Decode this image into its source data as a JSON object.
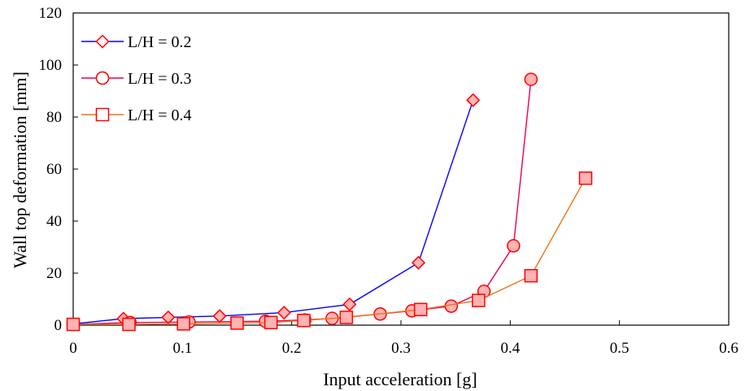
{
  "chart_data": {
    "type": "line",
    "title": "",
    "xlabel": "Input acceleration [g]",
    "ylabel": "Wall top deformation [mm]",
    "xlim": [
      0,
      0.6
    ],
    "ylim": [
      0,
      120
    ],
    "xticks": [
      0,
      0.1,
      0.2,
      0.3,
      0.4,
      0.5,
      0.6
    ],
    "xtick_labels": [
      "0",
      "0.1",
      "0.2",
      "0.3",
      "0.4",
      "0.5",
      "0.6"
    ],
    "yticks": [
      0,
      20,
      40,
      60,
      80,
      100,
      120
    ],
    "ytick_labels": [
      "0",
      "20",
      "40",
      "60",
      "80",
      "100",
      "120"
    ],
    "grid": false,
    "legend_position": "top-left",
    "marker_color": "#ff0000",
    "marker_fill": "#ffb3b3",
    "series": [
      {
        "name": "L/H = 0.2",
        "line_color": "#0000ff",
        "marker": "diamond",
        "points": [
          [
            0,
            0.5
          ],
          [
            0.046,
            2.5
          ],
          [
            0.087,
            3.0
          ],
          [
            0.134,
            3.5
          ],
          [
            0.193,
            4.8
          ],
          [
            0.253,
            8.0
          ],
          [
            0.316,
            24.0
          ],
          [
            0.366,
            86.5
          ]
        ]
      },
      {
        "name": "L/H = 0.3",
        "line_color": "#e8004f",
        "marker": "circle",
        "points": [
          [
            0,
            0.3
          ],
          [
            0.052,
            1.0
          ],
          [
            0.106,
            1.2
          ],
          [
            0.176,
            1.5
          ],
          [
            0.212,
            2.0
          ],
          [
            0.237,
            2.6
          ],
          [
            0.281,
            4.3
          ],
          [
            0.31,
            5.5
          ],
          [
            0.346,
            7.3
          ],
          [
            0.376,
            13.0
          ],
          [
            0.403,
            30.5
          ],
          [
            0.419,
            94.5
          ]
        ]
      },
      {
        "name": "L/H = 0.4",
        "line_color": "#e87418",
        "marker": "square",
        "points": [
          [
            0,
            0.3
          ],
          [
            0.051,
            0.3
          ],
          [
            0.101,
            0.5
          ],
          [
            0.15,
            0.8
          ],
          [
            0.181,
            1.0
          ],
          [
            0.211,
            1.8
          ],
          [
            0.25,
            3.0
          ],
          [
            0.318,
            6.0
          ],
          [
            0.371,
            9.5
          ],
          [
            0.419,
            19.0
          ],
          [
            0.469,
            56.5
          ]
        ]
      }
    ]
  }
}
